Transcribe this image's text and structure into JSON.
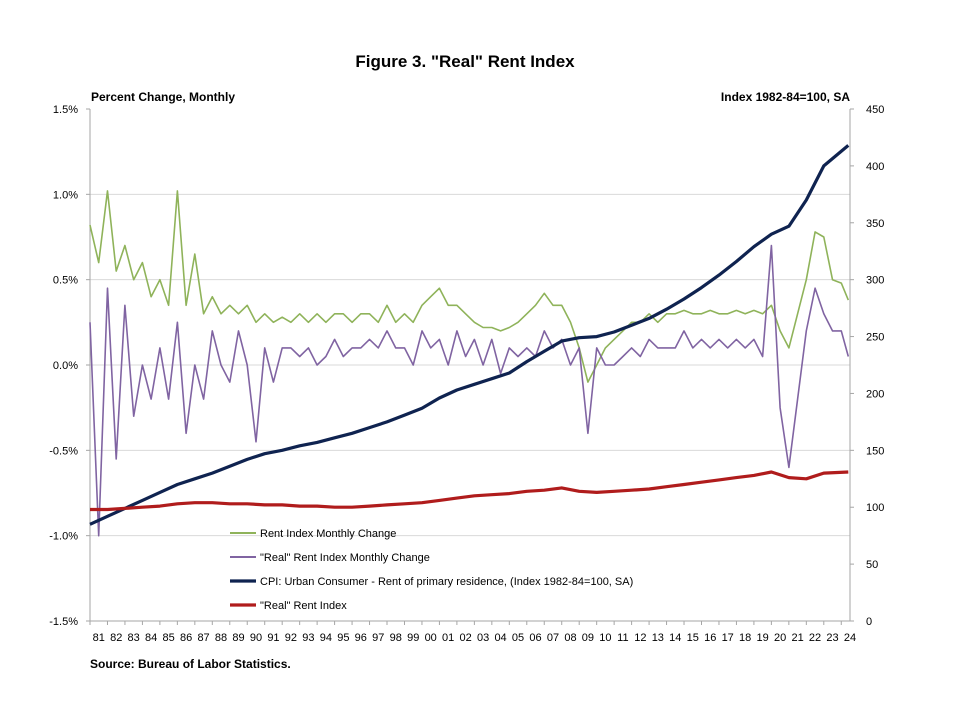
{
  "chart_data": {
    "type": "line",
    "title": "Figure 3. \"Real\" Rent Index",
    "left_axis_label": "Percent Change, Monthly",
    "right_axis_label": "Index 1982-84=100,  SA",
    "source": "Source: Bureau of Labor Statistics.",
    "y_left": {
      "min": -1.5,
      "max": 1.5,
      "ticks": [
        -1.5,
        -1.0,
        -0.5,
        0.0,
        0.5,
        1.0,
        1.5
      ],
      "tick_labels": [
        "-1.5%",
        "-1.0%",
        "-0.5%",
        "0.0%",
        "0.5%",
        "1.0%",
        "1.5%"
      ]
    },
    "y_right": {
      "min": 0,
      "max": 450,
      "ticks": [
        0,
        50,
        100,
        150,
        200,
        250,
        300,
        350,
        400,
        450
      ],
      "tick_labels": [
        "0",
        "50",
        "100",
        "150",
        "200",
        "250",
        "300",
        "350",
        "400",
        "450"
      ]
    },
    "x_tick_labels": [
      "81",
      "82",
      "83",
      "84",
      "85",
      "86",
      "87",
      "88",
      "89",
      "90",
      "91",
      "92",
      "93",
      "94",
      "95",
      "96",
      "97",
      "98",
      "99",
      "00",
      "01",
      "02",
      "03",
      "04",
      "05",
      "06",
      "07",
      "08",
      "09",
      "10",
      "11",
      "12",
      "13",
      "14",
      "15",
      "16",
      "17",
      "18",
      "19",
      "20",
      "21",
      "22",
      "23",
      "24"
    ],
    "grid": "horizontal",
    "legend_position": "bottom-left inside plot",
    "series": [
      {
        "name": "Rent Index Monthly Change",
        "axis": "left",
        "color": "#8fb35a",
        "x": [
          1981.0,
          1981.5,
          1982.0,
          1982.5,
          1983.0,
          1983.5,
          1984.0,
          1984.5,
          1985.0,
          1985.5,
          1986.0,
          1986.5,
          1987.0,
          1987.5,
          1988.0,
          1988.5,
          1989.0,
          1989.5,
          1990.0,
          1990.5,
          1991.0,
          1991.5,
          1992.0,
          1992.5,
          1993.0,
          1993.5,
          1994.0,
          1994.5,
          1995.0,
          1995.5,
          1996.0,
          1996.5,
          1997.0,
          1997.5,
          1998.0,
          1998.5,
          1999.0,
          1999.5,
          2000.0,
          2000.5,
          2001.0,
          2001.5,
          2002.0,
          2002.5,
          2003.0,
          2003.5,
          2004.0,
          2004.5,
          2005.0,
          2005.5,
          2006.0,
          2006.5,
          2007.0,
          2007.5,
          2008.0,
          2008.5,
          2009.0,
          2009.5,
          2010.0,
          2010.5,
          2011.0,
          2011.5,
          2012.0,
          2012.5,
          2013.0,
          2013.5,
          2014.0,
          2014.5,
          2015.0,
          2015.5,
          2016.0,
          2016.5,
          2017.0,
          2017.5,
          2018.0,
          2018.5,
          2019.0,
          2019.5,
          2020.0,
          2020.5,
          2021.0,
          2021.5,
          2022.0,
          2022.5,
          2023.0,
          2023.5,
          2024.0,
          2024.4
        ],
        "y": [
          0.82,
          0.6,
          1.02,
          0.55,
          0.7,
          0.5,
          0.6,
          0.4,
          0.5,
          0.35,
          1.02,
          0.35,
          0.65,
          0.3,
          0.4,
          0.3,
          0.35,
          0.3,
          0.35,
          0.25,
          0.3,
          0.25,
          0.28,
          0.25,
          0.3,
          0.25,
          0.3,
          0.25,
          0.3,
          0.3,
          0.25,
          0.3,
          0.3,
          0.25,
          0.35,
          0.25,
          0.3,
          0.25,
          0.35,
          0.4,
          0.45,
          0.35,
          0.35,
          0.3,
          0.25,
          0.22,
          0.22,
          0.2,
          0.22,
          0.25,
          0.3,
          0.35,
          0.42,
          0.35,
          0.35,
          0.25,
          0.1,
          -0.1,
          0.0,
          0.1,
          0.15,
          0.2,
          0.25,
          0.25,
          0.3,
          0.25,
          0.3,
          0.3,
          0.32,
          0.3,
          0.3,
          0.32,
          0.3,
          0.3,
          0.32,
          0.3,
          0.32,
          0.3,
          0.35,
          0.2,
          0.1,
          0.3,
          0.5,
          0.78,
          0.75,
          0.5,
          0.48,
          0.38
        ]
      },
      {
        "name": "\"Real\" Rent Index Monthly Change",
        "axis": "left",
        "color": "#8064a2",
        "x": [
          1981.0,
          1981.5,
          1982.0,
          1982.5,
          1983.0,
          1983.5,
          1984.0,
          1984.5,
          1985.0,
          1985.5,
          1986.0,
          1986.5,
          1987.0,
          1987.5,
          1988.0,
          1988.5,
          1989.0,
          1989.5,
          1990.0,
          1990.5,
          1991.0,
          1991.5,
          1992.0,
          1992.5,
          1993.0,
          1993.5,
          1994.0,
          1994.5,
          1995.0,
          1995.5,
          1996.0,
          1996.5,
          1997.0,
          1997.5,
          1998.0,
          1998.5,
          1999.0,
          1999.5,
          2000.0,
          2000.5,
          2001.0,
          2001.5,
          2002.0,
          2002.5,
          2003.0,
          2003.5,
          2004.0,
          2004.5,
          2005.0,
          2005.5,
          2006.0,
          2006.5,
          2007.0,
          2007.5,
          2008.0,
          2008.5,
          2009.0,
          2009.5,
          2010.0,
          2010.5,
          2011.0,
          2011.5,
          2012.0,
          2012.5,
          2013.0,
          2013.5,
          2014.0,
          2014.5,
          2015.0,
          2015.5,
          2016.0,
          2016.5,
          2017.0,
          2017.5,
          2018.0,
          2018.5,
          2019.0,
          2019.5,
          2020.0,
          2020.5,
          2021.0,
          2021.5,
          2022.0,
          2022.5,
          2023.0,
          2023.5,
          2024.0,
          2024.4
        ],
        "y": [
          0.25,
          -1.0,
          0.45,
          -0.55,
          0.35,
          -0.3,
          0.0,
          -0.2,
          0.1,
          -0.2,
          0.25,
          -0.4,
          0.0,
          -0.2,
          0.2,
          0.0,
          -0.1,
          0.2,
          0.0,
          -0.45,
          0.1,
          -0.1,
          0.1,
          0.1,
          0.05,
          0.1,
          0.0,
          0.05,
          0.15,
          0.05,
          0.1,
          0.1,
          0.15,
          0.1,
          0.2,
          0.1,
          0.1,
          0.0,
          0.2,
          0.1,
          0.15,
          0.0,
          0.2,
          0.05,
          0.15,
          0.0,
          0.15,
          -0.05,
          0.1,
          0.05,
          0.1,
          0.05,
          0.2,
          0.1,
          0.15,
          0.0,
          0.1,
          -0.4,
          0.1,
          0.0,
          0.0,
          0.05,
          0.1,
          0.05,
          0.15,
          0.1,
          0.1,
          0.1,
          0.2,
          0.1,
          0.15,
          0.1,
          0.15,
          0.1,
          0.15,
          0.1,
          0.15,
          0.05,
          0.7,
          -0.25,
          -0.6,
          -0.2,
          0.2,
          0.45,
          0.3,
          0.2,
          0.2,
          0.05
        ]
      },
      {
        "name": "CPI: Urban Consumer - Rent of primary residence, (Index 1982-84=100, SA)",
        "axis": "right",
        "color": "#0f2350",
        "x": [
          1981,
          1982,
          1983,
          1984,
          1985,
          1986,
          1987,
          1988,
          1989,
          1990,
          1991,
          1992,
          1993,
          1994,
          1995,
          1996,
          1997,
          1998,
          1999,
          2000,
          2001,
          2002,
          2003,
          2004,
          2005,
          2006,
          2007,
          2008,
          2009,
          2010,
          2011,
          2012,
          2013,
          2014,
          2015,
          2016,
          2017,
          2018,
          2019,
          2020,
          2021,
          2022,
          2023,
          2024.4
        ],
        "y": [
          85,
          92,
          99,
          106,
          113,
          120,
          125,
          130,
          136,
          142,
          147,
          150,
          154,
          157,
          161,
          165,
          170,
          175,
          181,
          187,
          196,
          203,
          208,
          213,
          218,
          228,
          237,
          246,
          249,
          250,
          254,
          260,
          266,
          274,
          283,
          293,
          304,
          316,
          329,
          340,
          347,
          370,
          400,
          418
        ]
      },
      {
        "name": "\"Real\" Rent Index",
        "axis": "right",
        "color": "#b01c1c",
        "x": [
          1981,
          1982,
          1983,
          1984,
          1985,
          1986,
          1987,
          1988,
          1989,
          1990,
          1991,
          1992,
          1993,
          1994,
          1995,
          1996,
          1997,
          1998,
          1999,
          2000,
          2001,
          2002,
          2003,
          2004,
          2005,
          2006,
          2007,
          2008,
          2009,
          2010,
          2011,
          2012,
          2013,
          2014,
          2015,
          2016,
          2017,
          2018,
          2019,
          2020,
          2021,
          2022,
          2023,
          2024.4
        ],
        "y": [
          98,
          98,
          99,
          100,
          101,
          103,
          104,
          104,
          103,
          103,
          102,
          102,
          101,
          101,
          100,
          100,
          101,
          102,
          103,
          104,
          106,
          108,
          110,
          111,
          112,
          114,
          115,
          117,
          114,
          113,
          114,
          115,
          116,
          118,
          120,
          122,
          124,
          126,
          128,
          131,
          126,
          125,
          130,
          131
        ]
      }
    ]
  }
}
